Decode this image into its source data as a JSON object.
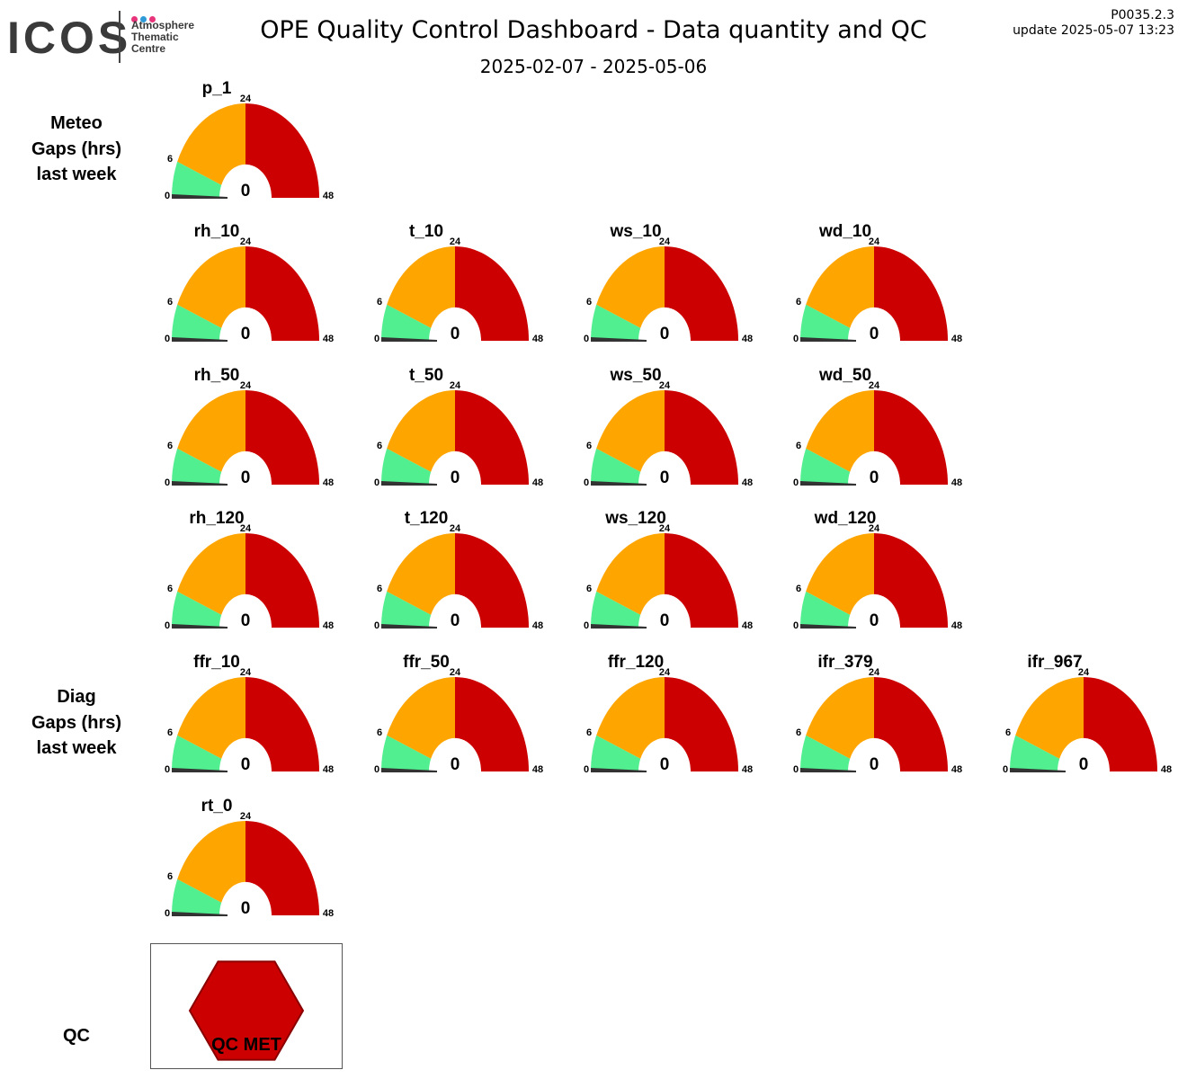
{
  "header": {
    "logo_text": "ICOS",
    "logo_lines": [
      "Atmosphere",
      "Thematic",
      "Centre"
    ],
    "title": "OPE  Quality Control Dashboard - Data quantity and QC",
    "subtitle": "2025-02-07 - 2025-05-06",
    "version": "P0035.2.3",
    "update": "update  2025-05-07 13:23"
  },
  "colors": {
    "green": "#51ef8f",
    "orange": "#ffa500",
    "red": "#cc0000",
    "needle": "#333333",
    "logo_dots": [
      "#e8347a",
      "#2e9ad8",
      "#e8347a"
    ]
  },
  "sections": {
    "meteo": [
      "Meteo",
      "Gaps (hrs)",
      "last week"
    ],
    "diag": [
      "Diag",
      "Gaps (hrs)",
      "last week"
    ],
    "qc": "QC"
  },
  "chart_data": {
    "type": "gauge",
    "range": [
      0,
      48
    ],
    "bands": [
      {
        "from": 0,
        "to": 6,
        "color": "green"
      },
      {
        "from": 6,
        "to": 24,
        "color": "orange"
      },
      {
        "from": 24,
        "to": 48,
        "color": "red"
      }
    ],
    "tick_labels": [
      "0",
      "6",
      "24",
      "48"
    ],
    "rows": [
      [
        {
          "name": "p_1",
          "value": 0
        }
      ],
      [
        {
          "name": "rh_10",
          "value": 0
        },
        {
          "name": "t_10",
          "value": 0
        },
        {
          "name": "ws_10",
          "value": 0
        },
        {
          "name": "wd_10",
          "value": 0
        }
      ],
      [
        {
          "name": "rh_50",
          "value": 0
        },
        {
          "name": "t_50",
          "value": 0
        },
        {
          "name": "ws_50",
          "value": 0
        },
        {
          "name": "wd_50",
          "value": 0
        }
      ],
      [
        {
          "name": "rh_120",
          "value": 0
        },
        {
          "name": "t_120",
          "value": 0
        },
        {
          "name": "ws_120",
          "value": 0
        },
        {
          "name": "wd_120",
          "value": 0
        }
      ],
      [
        {
          "name": "ffr_10",
          "value": 0
        },
        {
          "name": "ffr_50",
          "value": 0
        },
        {
          "name": "ffr_120",
          "value": 0
        },
        {
          "name": "ifr_379",
          "value": 0
        },
        {
          "name": "ifr_967",
          "value": 0
        }
      ],
      [
        {
          "name": "rt_0",
          "value": 0
        }
      ]
    ]
  },
  "qc": {
    "label": "QC MET",
    "color": "#cc0000"
  }
}
